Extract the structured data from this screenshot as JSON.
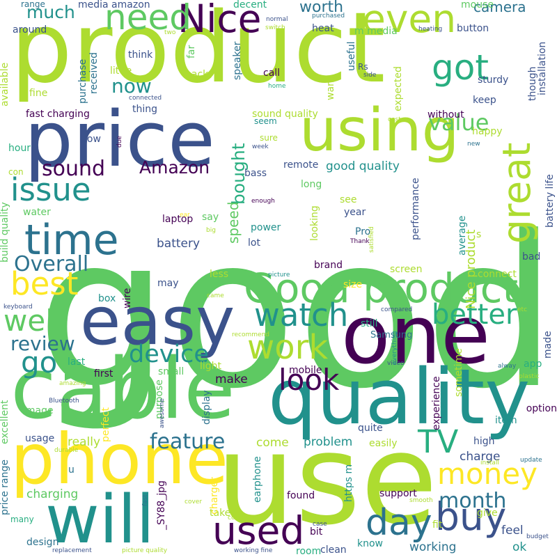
{
  "colors": {
    "background": "#ffffff",
    "palette": [
      "#440154",
      "#3b528b",
      "#2c728e",
      "#21918c",
      "#28ae80",
      "#5ec962",
      "#addc30",
      "#fde725"
    ]
  },
  "words": [
    {
      "text": "good",
      "weight": 1.0
    },
    {
      "text": "product",
      "weight": 0.9
    },
    {
      "text": "use",
      "weight": 0.72
    },
    {
      "text": "quality",
      "weight": 0.62
    },
    {
      "text": "cable",
      "weight": 0.62
    },
    {
      "text": "one",
      "weight": 0.58
    },
    {
      "text": "price",
      "weight": 0.55
    },
    {
      "text": "easy",
      "weight": 0.52
    },
    {
      "text": "using",
      "weight": 0.5
    },
    {
      "text": "phone",
      "weight": 0.5
    },
    {
      "text": "will",
      "weight": 0.48
    },
    {
      "text": "Good product",
      "weight": 0.38
    },
    {
      "text": "time",
      "weight": 0.32
    },
    {
      "text": "buy",
      "weight": 0.32
    },
    {
      "text": "used",
      "weight": 0.3
    },
    {
      "text": "day",
      "weight": 0.3
    },
    {
      "text": "Nice",
      "weight": 0.28
    },
    {
      "text": "need",
      "weight": 0.26
    },
    {
      "text": "even",
      "weight": 0.26
    },
    {
      "text": "got",
      "weight": 0.26
    },
    {
      "text": "great",
      "weight": 0.25
    },
    {
      "text": "money",
      "weight": 0.24
    },
    {
      "text": "TV",
      "weight": 0.24
    },
    {
      "text": "watch",
      "weight": 0.24
    },
    {
      "text": "work",
      "weight": 0.24
    },
    {
      "text": "look",
      "weight": 0.23
    },
    {
      "text": "best",
      "weight": 0.22
    },
    {
      "text": "issue",
      "weight": 0.22
    },
    {
      "text": "well",
      "weight": 0.22
    },
    {
      "text": "go",
      "weight": 0.22
    },
    {
      "text": "better",
      "weight": 0.2
    },
    {
      "text": "device",
      "weight": 0.2
    },
    {
      "text": "Overall",
      "weight": 0.18
    },
    {
      "text": "sound",
      "weight": 0.18
    },
    {
      "text": "value",
      "weight": 0.18
    },
    {
      "text": "month",
      "weight": 0.17
    },
    {
      "text": "feature",
      "weight": 0.17
    },
    {
      "text": "review",
      "weight": 0.15
    },
    {
      "text": "Amazon",
      "weight": 0.15
    },
    {
      "text": "much",
      "weight": 0.15
    },
    {
      "text": "now",
      "weight": 0.15
    },
    {
      "text": "bought",
      "weight": 0.14
    },
    {
      "text": "camera",
      "weight": 0.13
    },
    {
      "text": "worth",
      "weight": 0.13
    },
    {
      "text": "speed",
      "weight": 0.12
    },
    {
      "text": "Nice product",
      "weight": 0.12
    },
    {
      "text": "good quality",
      "weight": 0.11
    },
    {
      "text": "charge",
      "weight": 0.11
    },
    {
      "text": "problem",
      "weight": 0.11
    },
    {
      "text": "charging",
      "weight": 0.11
    },
    {
      "text": "battery",
      "weight": 0.1
    },
    {
      "text": "really",
      "weight": 0.1
    },
    {
      "text": "working",
      "weight": 0.1
    },
    {
      "text": "feel",
      "weight": 0.1
    },
    {
      "text": "ok",
      "weight": 0.1
    },
    {
      "text": "come",
      "weight": 0.1
    },
    {
      "text": "make",
      "weight": 0.1
    },
    {
      "text": "sound quality",
      "weight": 0.09
    },
    {
      "text": "fast charging",
      "weight": 0.09
    },
    {
      "text": "Samsung",
      "weight": 0.09
    },
    {
      "text": "support",
      "weight": 0.09
    },
    {
      "text": "clean",
      "weight": 0.09
    },
    {
      "text": "found",
      "weight": 0.09
    },
    {
      "text": "give",
      "weight": 0.09
    },
    {
      "text": "app",
      "weight": 0.09
    },
    {
      "text": "made",
      "weight": 0.09
    },
    {
      "text": "performance",
      "weight": 0.08
    },
    {
      "text": "laptop",
      "weight": 0.08
    },
    {
      "text": "still",
      "weight": 0.08
    },
    {
      "text": "mobile",
      "weight": 0.08
    },
    {
      "text": "screen",
      "weight": 0.08
    },
    {
      "text": "brand",
      "weight": 0.08
    },
    {
      "text": "power",
      "weight": 0.08
    },
    {
      "text": "water",
      "weight": 0.08
    },
    {
      "text": "image",
      "weight": 0.08
    },
    {
      "text": "usage",
      "weight": 0.07
    },
    {
      "text": "take",
      "weight": 0.07
    },
    {
      "text": "high",
      "weight": 0.07
    },
    {
      "text": "quite",
      "weight": 0.07
    },
    {
      "text": "option",
      "weight": 0.07
    },
    {
      "text": "experience",
      "weight": 0.07
    },
    {
      "text": "small",
      "weight": 0.07
    },
    {
      "text": "first",
      "weight": 0.07
    },
    {
      "text": "last",
      "weight": 0.07
    },
    {
      "text": "lot",
      "weight": 0.07
    },
    {
      "text": "year",
      "weight": 0.07
    },
    {
      "text": "Pro",
      "weight": 0.07
    },
    {
      "text": "bad",
      "weight": 0.07
    },
    {
      "text": "box",
      "weight": 0.07
    },
    {
      "text": "size",
      "weight": 0.07
    },
    {
      "text": "connect",
      "weight": 0.07
    },
    {
      "text": "bit",
      "weight": 0.07
    },
    {
      "text": "easily",
      "weight": 0.07
    },
    {
      "text": "purchase",
      "weight": 0.07
    },
    {
      "text": "thing",
      "weight": 0.07
    },
    {
      "text": "without",
      "weight": 0.07
    },
    {
      "text": "keep",
      "weight": 0.07
    },
    {
      "text": "heat",
      "weight": 0.06
    },
    {
      "text": "button",
      "weight": 0.06
    },
    {
      "text": "m media",
      "weight": 0.06
    },
    {
      "text": "media amazon",
      "weight": 0.06
    },
    {
      "text": "around",
      "weight": 0.06
    },
    {
      "text": "decent",
      "weight": 0.06
    },
    {
      "text": "mouse",
      "weight": 0.06
    },
    {
      "text": "remote",
      "weight": 0.06
    },
    {
      "text": "wire",
      "weight": 0.06
    },
    {
      "text": "hour",
      "weight": 0.06
    },
    {
      "text": "low",
      "weight": 0.06
    },
    {
      "text": "bass",
      "weight": 0.06
    },
    {
      "text": "long",
      "weight": 0.06
    },
    {
      "text": "sturdy",
      "weight": 0.06
    },
    {
      "text": "call",
      "weight": 0.06
    },
    {
      "text": "happy",
      "weight": 0.06
    },
    {
      "text": "battery life",
      "weight": 0.06
    },
    {
      "text": "installation",
      "weight": 0.06
    },
    {
      "text": "want",
      "weight": 0.06
    },
    {
      "text": "useful",
      "weight": 0.06
    },
    {
      "text": "fine",
      "weight": 0.06
    },
    {
      "text": "little",
      "weight": 0.06
    },
    {
      "text": "think",
      "weight": 0.06
    },
    {
      "text": "received",
      "weight": 0.06
    },
    {
      "text": "back",
      "weight": 0.06
    },
    {
      "text": "speaker",
      "weight": 0.06
    },
    {
      "text": "far",
      "weight": 0.06
    },
    {
      "text": "expected",
      "weight": 0.06
    },
    {
      "text": "though",
      "weight": 0.06
    },
    {
      "text": "say",
      "weight": 0.06
    },
    {
      "text": "may",
      "weight": 0.06
    },
    {
      "text": "less",
      "weight": 0.06
    },
    {
      "text": "looking",
      "weight": 0.06
    },
    {
      "text": "average",
      "weight": 0.06
    },
    {
      "text": "s",
      "weight": 0.06
    },
    {
      "text": "see",
      "weight": 0.06
    },
    {
      "text": "con",
      "weight": 0.06
    },
    {
      "text": "available",
      "weight": 0.06
    },
    {
      "text": "build quality",
      "weight": 0.06
    },
    {
      "text": "excellent",
      "weight": 0.06
    },
    {
      "text": "price range",
      "weight": 0.06
    },
    {
      "text": "design",
      "weight": 0.06
    },
    {
      "text": "perfect",
      "weight": 0.06
    },
    {
      "text": "purpose",
      "weight": 0.06
    },
    {
      "text": "display",
      "weight": 0.06
    },
    {
      "text": "charger",
      "weight": 0.06
    },
    {
      "text": "earphone",
      "weight": 0.06
    },
    {
      "text": "_SY88_jpg",
      "weight": 0.06
    },
    {
      "text": "https m",
      "weight": 0.06
    },
    {
      "text": "room",
      "weight": 0.06
    },
    {
      "text": "know",
      "weight": 0.06
    },
    {
      "text": "u",
      "weight": 0.06
    },
    {
      "text": "item",
      "weight": 0.06
    },
    {
      "text": "sometime",
      "weight": 0.06
    },
    {
      "text": "light",
      "weight": 0.06
    },
    {
      "text": "fit",
      "weight": 0.06
    },
    {
      "text": "many",
      "weight": 0.04
    },
    {
      "text": "range",
      "weight": 0.04
    },
    {
      "text": "two",
      "weight": 0.03
    },
    {
      "text": "normal",
      "weight": 0.03
    },
    {
      "text": "switch",
      "weight": 0.03
    },
    {
      "text": "purchased",
      "weight": 0.03
    },
    {
      "text": "heating",
      "weight": 0.03
    },
    {
      "text": "Rs",
      "weight": 0.04
    },
    {
      "text": "side",
      "weight": 0.03
    },
    {
      "text": "home",
      "weight": 0.03
    },
    {
      "text": "connected",
      "weight": 0.03
    },
    {
      "text": "cost",
      "weight": 0.03
    },
    {
      "text": "seem",
      "weight": 0.04
    },
    {
      "text": "sure",
      "weight": 0.04
    },
    {
      "text": "week",
      "weight": 0.03
    },
    {
      "text": "due",
      "weight": 0.03
    },
    {
      "text": "new",
      "weight": 0.03
    },
    {
      "text": "enough",
      "weight": 0.03
    },
    {
      "text": "satisfied",
      "weight": 0.03
    },
    {
      "text": "ear",
      "weight": 0.03
    },
    {
      "text": "big",
      "weight": 0.03
    },
    {
      "text": "Thank",
      "weight": 0.03
    },
    {
      "text": "picture",
      "weight": 0.03
    },
    {
      "text": "came",
      "weight": 0.03
    },
    {
      "text": "keyboard",
      "weight": 0.03
    },
    {
      "text": "compared",
      "weight": 0.03
    },
    {
      "text": "etc",
      "weight": 0.03
    },
    {
      "text": "recommend",
      "weight": 0.03
    },
    {
      "text": "video",
      "weight": 0.03
    },
    {
      "text": "everything",
      "weight": 0.03
    },
    {
      "text": "alway",
      "weight": 0.03
    },
    {
      "text": "plastic",
      "weight": 0.03
    },
    {
      "text": "amazing",
      "weight": 0.03
    },
    {
      "text": "awesome",
      "weight": 0.03
    },
    {
      "text": "Bluetooth",
      "weight": 0.03
    },
    {
      "text": "durable",
      "weight": 0.03
    },
    {
      "text": "install",
      "weight": 0.03
    },
    {
      "text": "update",
      "weight": 0.03
    },
    {
      "text": "fast",
      "weight": 0.03
    },
    {
      "text": "cover",
      "weight": 0.03
    },
    {
      "text": "smooth",
      "weight": 0.03
    },
    {
      "text": "company",
      "weight": 0.03
    },
    {
      "text": "case",
      "weight": 0.03
    },
    {
      "text": "budget",
      "weight": 0.03
    },
    {
      "text": "replacement",
      "weight": 0.03
    },
    {
      "text": "picture quality",
      "weight": 0.03
    },
    {
      "text": "working fine",
      "weight": 0.03
    }
  ]
}
